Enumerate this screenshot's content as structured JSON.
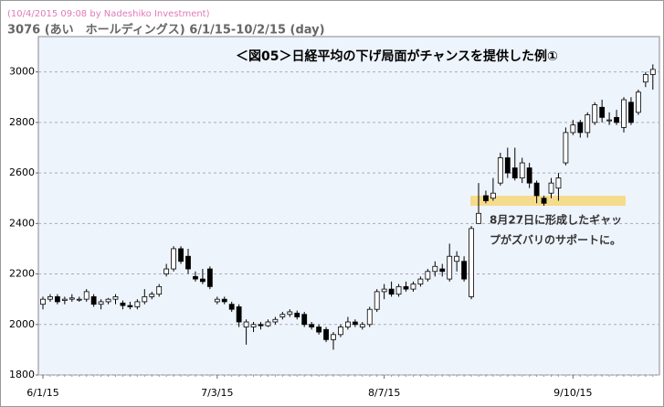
{
  "chart_data": {
    "type": "candlestick",
    "header": "(10/4/2015 09:08 by Nadeshiko Investment)",
    "title": "3076 (あい　ホールディングス) 6/1/15-10/2/15 (day)",
    "annotation_title": "＜図05＞日経平均の下げ局面がチャンスを提供した例①",
    "annotation_lines": [
      "8月27日に形成したギャッ",
      "プがズバリのサポートに。"
    ],
    "categories": [
      "6/1/15",
      null,
      null,
      null,
      null,
      null,
      null,
      null,
      null,
      null,
      null,
      null,
      null,
      null,
      null,
      null,
      null,
      null,
      null,
      null,
      null,
      null,
      null,
      null,
      "7/3/15",
      null,
      null,
      null,
      null,
      null,
      null,
      null,
      null,
      null,
      null,
      null,
      null,
      null,
      null,
      null,
      null,
      null,
      null,
      null,
      null,
      null,
      null,
      "8/7/15",
      null,
      null,
      null,
      null,
      null,
      null,
      null,
      null,
      null,
      null,
      null,
      null,
      null,
      null,
      null,
      null,
      null,
      null,
      null,
      null,
      null,
      null,
      null,
      null,
      null,
      "9/10/15",
      null,
      null,
      null,
      null,
      null,
      null,
      null,
      null,
      null,
      null,
      null,
      null,
      null
    ],
    "ohlc": [
      [
        2080,
        2110,
        2060,
        2100
      ],
      [
        2100,
        2120,
        2090,
        2110
      ],
      [
        2110,
        2120,
        2080,
        2090
      ],
      [
        2095,
        2110,
        2080,
        2100
      ],
      [
        2100,
        2120,
        2090,
        2105
      ],
      [
        2100,
        2110,
        2090,
        2100
      ],
      [
        2100,
        2140,
        2090,
        2130
      ],
      [
        2110,
        2120,
        2070,
        2080
      ],
      [
        2080,
        2100,
        2060,
        2090
      ],
      [
        2090,
        2105,
        2080,
        2100
      ],
      [
        2100,
        2120,
        2080,
        2110
      ],
      [
        2085,
        2095,
        2060,
        2075
      ],
      [
        2075,
        2090,
        2060,
        2070
      ],
      [
        2070,
        2100,
        2060,
        2090
      ],
      [
        2090,
        2140,
        2080,
        2110
      ],
      [
        2110,
        2130,
        2100,
        2120
      ],
      [
        2120,
        2160,
        2110,
        2150
      ],
      [
        2200,
        2240,
        2190,
        2220
      ],
      [
        2220,
        2310,
        2210,
        2300
      ],
      [
        2300,
        2310,
        2240,
        2250
      ],
      [
        2270,
        2300,
        2200,
        2220
      ],
      [
        2190,
        2210,
        2170,
        2180
      ],
      [
        2180,
        2220,
        2160,
        2170
      ],
      [
        2220,
        2230,
        2140,
        2150
      ],
      [
        2090,
        2110,
        2080,
        2100
      ],
      [
        2100,
        2110,
        2080,
        2090
      ],
      [
        2080,
        2090,
        2050,
        2060
      ],
      [
        2070,
        2080,
        1990,
        2010
      ],
      [
        1990,
        2020,
        1920,
        2010
      ],
      [
        1990,
        2010,
        1970,
        2000
      ],
      [
        2000,
        2010,
        1980,
        1995
      ],
      [
        1995,
        2020,
        1990,
        2010
      ],
      [
        2010,
        2030,
        2000,
        2020
      ],
      [
        2030,
        2050,
        2020,
        2040
      ],
      [
        2040,
        2060,
        2030,
        2050
      ],
      [
        2045,
        2055,
        2020,
        2030
      ],
      [
        2040,
        2050,
        1990,
        2000
      ],
      [
        2000,
        2010,
        1980,
        1990
      ],
      [
        1990,
        2000,
        1960,
        1970
      ],
      [
        1980,
        1990,
        1930,
        1940
      ],
      [
        1940,
        1970,
        1900,
        1960
      ],
      [
        1960,
        2000,
        1950,
        1990
      ],
      [
        1990,
        2030,
        1980,
        2010
      ],
      [
        2010,
        2020,
        1990,
        2000
      ],
      [
        1990,
        2010,
        1980,
        2000
      ],
      [
        2000,
        2070,
        1990,
        2060
      ],
      [
        2060,
        2140,
        2050,
        2130
      ],
      [
        2130,
        2160,
        2100,
        2140
      ],
      [
        2140,
        2170,
        2110,
        2120
      ],
      [
        2120,
        2160,
        2110,
        2150
      ],
      [
        2150,
        2170,
        2130,
        2140
      ],
      [
        2140,
        2170,
        2130,
        2160
      ],
      [
        2160,
        2190,
        2150,
        2180
      ],
      [
        2180,
        2220,
        2170,
        2210
      ],
      [
        2210,
        2250,
        2190,
        2230
      ],
      [
        2220,
        2240,
        2190,
        2210
      ],
      [
        2180,
        2320,
        2170,
        2270
      ],
      [
        2250,
        2290,
        2210,
        2270
      ],
      [
        2250,
        2270,
        2170,
        2180
      ],
      [
        2110,
        2390,
        2100,
        2380
      ],
      [
        2400,
        2560,
        2400,
        2440
      ],
      [
        2510,
        2530,
        2480,
        2490
      ],
      [
        2500,
        2580,
        2490,
        2520
      ],
      [
        2560,
        2680,
        2550,
        2660
      ],
      [
        2660,
        2700,
        2580,
        2600
      ],
      [
        2620,
        2700,
        2570,
        2580
      ],
      [
        2580,
        2660,
        2560,
        2640
      ],
      [
        2620,
        2640,
        2540,
        2560
      ],
      [
        2560,
        2570,
        2480,
        2510
      ],
      [
        2500,
        2510,
        2470,
        2480
      ],
      [
        2520,
        2580,
        2500,
        2560
      ],
      [
        2540,
        2600,
        2490,
        2580
      ],
      [
        2640,
        2780,
        2630,
        2760
      ],
      [
        2760,
        2810,
        2750,
        2790
      ],
      [
        2800,
        2810,
        2740,
        2760
      ],
      [
        2760,
        2840,
        2740,
        2830
      ],
      [
        2800,
        2880,
        2790,
        2870
      ],
      [
        2860,
        2890,
        2800,
        2820
      ],
      [
        2810,
        2840,
        2790,
        2810
      ],
      [
        2820,
        2850,
        2790,
        2800
      ],
      [
        2780,
        2900,
        2760,
        2890
      ],
      [
        2880,
        2900,
        2790,
        2800
      ],
      [
        2840,
        2930,
        2830,
        2920
      ],
      [
        2960,
        3000,
        2940,
        2990
      ],
      [
        2990,
        3030,
        2930,
        3010
      ]
    ],
    "up_color": "#ffffff",
    "down_color": "#000000",
    "ylim": [
      1800,
      3140
    ],
    "yticks": [
      1800,
      2000,
      2200,
      2400,
      2600,
      2800,
      3000
    ],
    "grid": true
  }
}
